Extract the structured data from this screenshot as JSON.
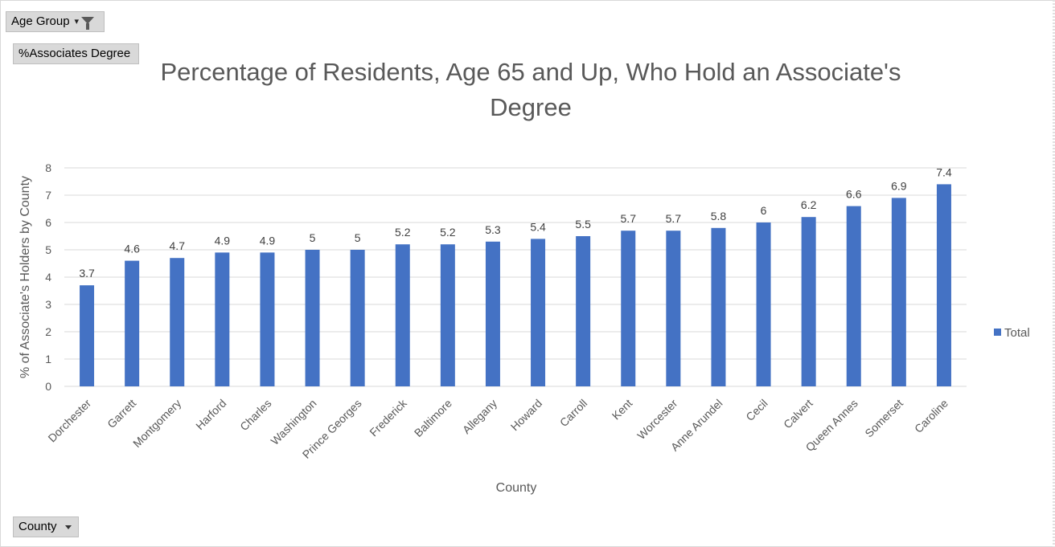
{
  "pivot": {
    "filter_button": {
      "label": "Age Group",
      "icon": "filter-funnel-icon"
    },
    "values_button": {
      "label": "%Associates Degree"
    },
    "axis_button": {
      "label": "County",
      "icon": "chevron-down-icon"
    }
  },
  "chart_data": {
    "type": "bar",
    "title": "Percentage of Residents, Age 65 and Up, Who Hold an Associate's Degree",
    "xlabel": "County",
    "ylabel": "% of Associate's Holders by County",
    "ylim": [
      0,
      8
    ],
    "yticks": [
      "0",
      "1",
      "2",
      "3",
      "4",
      "5",
      "6",
      "7",
      "8"
    ],
    "grid": true,
    "legend_position": "right",
    "bar_color": "#4472c4",
    "categories": [
      "Dorchester",
      "Garrett",
      "Montgomery",
      "Harford",
      "Charles",
      "Washington",
      "Prince Georges",
      "Frederick",
      "Baltimore",
      "Allegany",
      "Howard",
      "Carroll",
      "Kent",
      "Worcester",
      "Anne Arundel",
      "Cecil",
      "Calvert",
      "Queen Annes",
      "Somerset",
      "Caroline"
    ],
    "series": [
      {
        "name": "Total",
        "values": [
          3.7,
          4.6,
          4.7,
          4.9,
          4.9,
          5,
          5,
          5.2,
          5.2,
          5.3,
          5.4,
          5.5,
          5.7,
          5.7,
          5.8,
          6,
          6.2,
          6.6,
          6.9,
          7.4
        ]
      }
    ]
  }
}
